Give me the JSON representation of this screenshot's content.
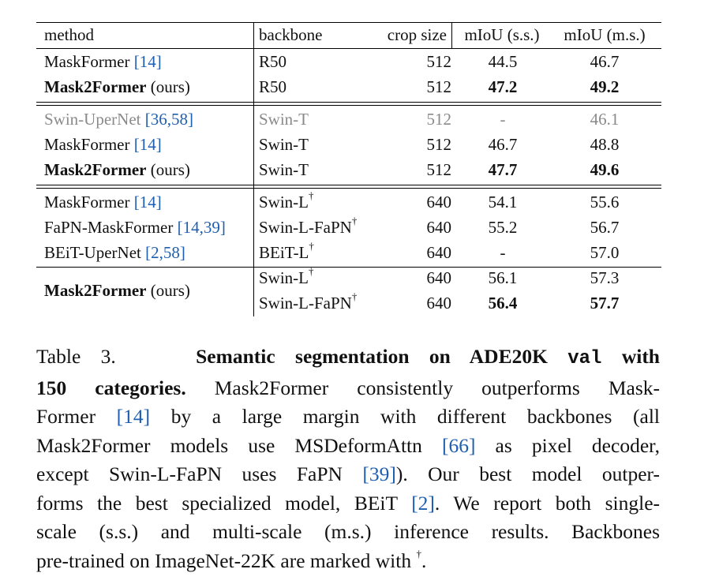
{
  "table": {
    "headers": {
      "method": "method",
      "backbone": "backbone",
      "crop": "crop size",
      "ss": "mIoU (s.s.)",
      "ms": "mIoU (m.s.)"
    },
    "groups": [
      {
        "rows": [
          {
            "method": "MaskFormer",
            "refs": "[14]",
            "backbone": "R50",
            "dagger": false,
            "crop": "512",
            "ss": "44.5",
            "ms": "46.7",
            "bold_method": false,
            "bold_ss": false,
            "bold_ms": false,
            "gray": false
          },
          {
            "method": "Mask2Former",
            "suffix": "(ours)",
            "backbone": "R50",
            "dagger": false,
            "crop": "512",
            "ss": "47.2",
            "ms": "49.2",
            "bold_method": true,
            "bold_ss": true,
            "bold_ms": true,
            "gray": false
          }
        ]
      },
      {
        "rows": [
          {
            "method": "Swin-UperNet",
            "refs": "[36,58]",
            "backbone": "Swin-T",
            "dagger": false,
            "crop": "512",
            "ss": "-",
            "ms": "46.1",
            "bold_method": false,
            "bold_ss": false,
            "bold_ms": false,
            "gray": true
          },
          {
            "method": "MaskFormer",
            "refs": "[14]",
            "backbone": "Swin-T",
            "dagger": false,
            "crop": "512",
            "ss": "46.7",
            "ms": "48.8",
            "bold_method": false,
            "bold_ss": false,
            "bold_ms": false,
            "gray": false
          },
          {
            "method": "Mask2Former",
            "suffix": "(ours)",
            "backbone": "Swin-T",
            "dagger": false,
            "crop": "512",
            "ss": "47.7",
            "ms": "49.6",
            "bold_method": true,
            "bold_ss": true,
            "bold_ms": true,
            "gray": false
          }
        ]
      },
      {
        "rows": [
          {
            "method": "MaskFormer",
            "refs": "[14]",
            "backbone": "Swin-L",
            "dagger": true,
            "crop": "640",
            "ss": "54.1",
            "ms": "55.6",
            "bold_method": false,
            "bold_ss": false,
            "bold_ms": false,
            "gray": false
          },
          {
            "method": "FaPN-MaskFormer",
            "refs": "[14,39]",
            "backbone": "Swin-L-FaPN",
            "dagger": true,
            "crop": "640",
            "ss": "55.2",
            "ms": "56.7",
            "bold_method": false,
            "bold_ss": false,
            "bold_ms": false,
            "gray": false
          },
          {
            "method": "BEiT-UperNet",
            "refs": "[2,58]",
            "backbone": "BEiT-L",
            "dagger": true,
            "crop": "640",
            "ss": "-",
            "ms": "57.0",
            "bold_method": false,
            "bold_ss": false,
            "bold_ms": false,
            "gray": false
          }
        ]
      },
      {
        "method": "Mask2Former",
        "suffix": "(ours)",
        "rows": [
          {
            "backbone": "Swin-L",
            "dagger": true,
            "crop": "640",
            "ss": "56.1",
            "ms": "57.3",
            "bold_ss": false,
            "bold_ms": false
          },
          {
            "backbone": "Swin-L-FaPN",
            "dagger": true,
            "crop": "640",
            "ss": "56.4",
            "ms": "57.7",
            "bold_ss": true,
            "bold_ms": true
          }
        ]
      }
    ],
    "dagger_symbol": "†"
  },
  "caption": {
    "label": "Table 3.",
    "title_a": "Semantic segmentation on ADE20K ",
    "title_mono": "val",
    "title_b": " with",
    "title_c": "150 categories.",
    "l1_rest": " Mask2Former consistently outperforms Mask-",
    "l2a": "Former ",
    "l2ref": "[14]",
    "l2b": " by a large margin with different backbones (all",
    "l3a": "Mask2Former models use MSDeformAttn ",
    "l3ref": "[66]",
    "l3b": " as pixel decoder,",
    "l4a": "except Swin-L-FaPN uses FaPN ",
    "l4ref": "[39]",
    "l4b": "). Our best model outper-",
    "l5a": "forms the best specialized model, BEiT ",
    "l5ref": "[2]",
    "l5b": ". We report both single-",
    "l6": "scale (s.s.) and multi-scale (m.s.) inference results. Backbones",
    "l7a": "pre-trained on ImageNet-22K are marked with ",
    "l7sup": "†",
    "l7b": "."
  }
}
